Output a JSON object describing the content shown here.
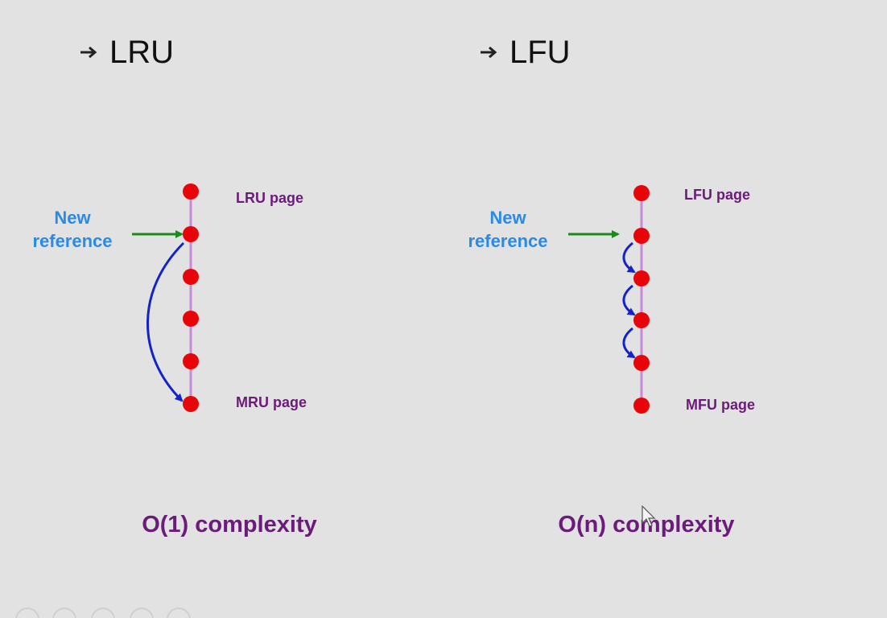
{
  "lru": {
    "title": "LRU",
    "new_reference_line1": "New",
    "new_reference_line2": "reference",
    "top_label": "LRU page",
    "bottom_label": "MRU page",
    "complexity": "O(1) complexity",
    "node_count": 6
  },
  "lfu": {
    "title": "LFU",
    "new_reference_line1": "New",
    "new_reference_line2": "reference",
    "top_label": "LFU page",
    "bottom_label": "MFU page",
    "complexity": "O(n) complexity",
    "node_count": 6
  },
  "colors": {
    "node": "#e8050a",
    "line": "#c78ad8",
    "green_arrow": "#1a8a1a",
    "blue_arrow": "#1323c8",
    "label_blue": "#2a8ae6",
    "label_purple": "#6b1b7a"
  }
}
